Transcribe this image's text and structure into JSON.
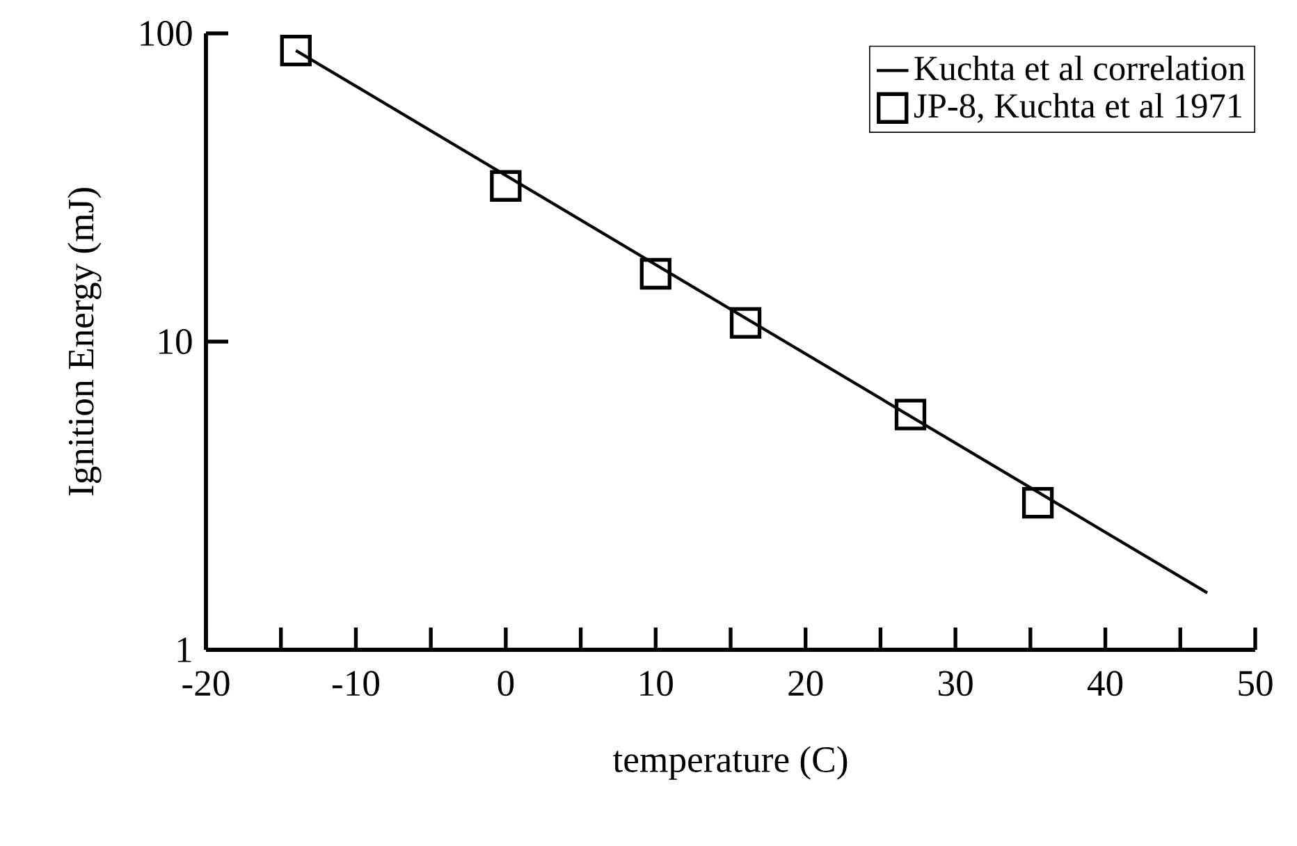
{
  "chart_data": {
    "type": "scatter",
    "xlabel": "temperature (C)",
    "ylabel": "Ignition Energy (mJ)",
    "series": [
      {
        "name": "Kuchta et al correlation",
        "type": "line",
        "color": "#000000",
        "marker": "none",
        "line_style": "solid",
        "x": [
          -14,
          46.8
        ],
        "values": [
          88,
          1.53
        ]
      },
      {
        "name": "JP-8, Kuchta et al 1971",
        "color": "#000000",
        "marker": "square",
        "x": [
          -14,
          0,
          10,
          16,
          27,
          35.5
        ],
        "values": [
          88,
          32,
          16.6,
          11.5,
          5.8,
          3.0
        ]
      }
    ],
    "xlim": [
      -20,
      50
    ],
    "ylim": [
      1,
      100
    ],
    "xticks": [
      -20,
      {
        "value": -15,
        "label": null
      },
      -10,
      {
        "value": -5,
        "label": null
      },
      0,
      {
        "value": 5,
        "label": null
      },
      10,
      {
        "value": 15,
        "label": null
      },
      20,
      {
        "value": 25,
        "label": null
      },
      30,
      {
        "value": 35,
        "label": null
      },
      40,
      {
        "value": 45,
        "label": null
      },
      50
    ],
    "yticks": [
      1,
      10,
      100
    ],
    "log": "y",
    "grid": false,
    "legend": "top right"
  }
}
